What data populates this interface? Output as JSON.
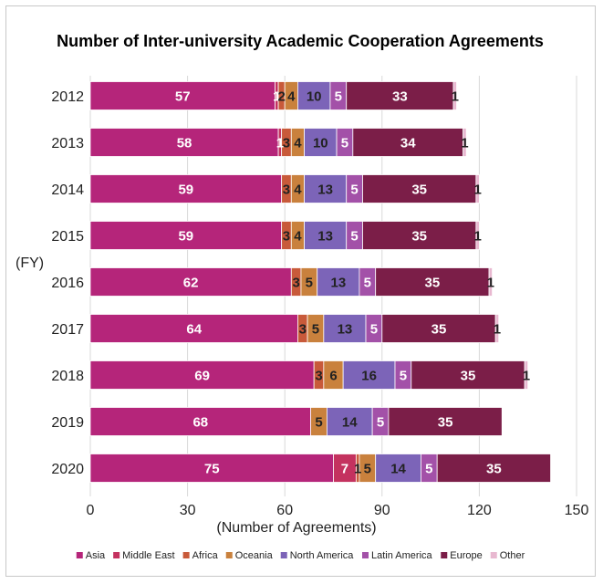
{
  "chart_data": {
    "type": "bar",
    "orientation": "horizontal",
    "stacked": true,
    "title": "Number of Inter-university Academic Cooperation Agreements",
    "xlabel": "(Number of Agreements)",
    "ylabel": "(FY)",
    "xlim": [
      0,
      150
    ],
    "xticks": [
      0,
      30,
      60,
      90,
      120,
      150
    ],
    "grid": "vertical",
    "legend": "bottom",
    "categories": [
      "2012",
      "2013",
      "2014",
      "2015",
      "2016",
      "2017",
      "2018",
      "2019",
      "2020"
    ],
    "series": [
      {
        "name": "Asia",
        "color": "#b5257a",
        "label_color": "#ffffff",
        "values": [
          57,
          58,
          59,
          59,
          62,
          64,
          69,
          68,
          75
        ]
      },
      {
        "name": "Middle East",
        "color": "#c4325f",
        "label_color": "#ffffff",
        "values": [
          1,
          1,
          0,
          0,
          0,
          0,
          0,
          0,
          7
        ]
      },
      {
        "name": "Africa",
        "color": "#c85a3a",
        "label_color": "#222222",
        "values": [
          2,
          3,
          3,
          3,
          3,
          3,
          3,
          0,
          1
        ]
      },
      {
        "name": "Oceania",
        "color": "#c9813d",
        "label_color": "#222222",
        "values": [
          4,
          4,
          4,
          4,
          5,
          5,
          6,
          5,
          5
        ]
      },
      {
        "name": "North America",
        "color": "#7c64b8",
        "label_color": "#222222",
        "values": [
          10,
          10,
          13,
          13,
          13,
          13,
          16,
          14,
          14
        ]
      },
      {
        "name": "Latin America",
        "color": "#a351a8",
        "label_color": "#ffffff",
        "values": [
          5,
          5,
          5,
          5,
          5,
          5,
          5,
          5,
          5
        ]
      },
      {
        "name": "Europe",
        "color": "#7b1e48",
        "label_color": "#ffffff",
        "values": [
          33,
          34,
          35,
          35,
          35,
          35,
          35,
          35,
          35
        ]
      },
      {
        "name": "Other",
        "color": "#e8b8d0",
        "label_color": "#222222",
        "values": [
          1,
          1,
          1,
          1,
          1,
          1,
          1,
          0,
          0
        ]
      }
    ]
  }
}
